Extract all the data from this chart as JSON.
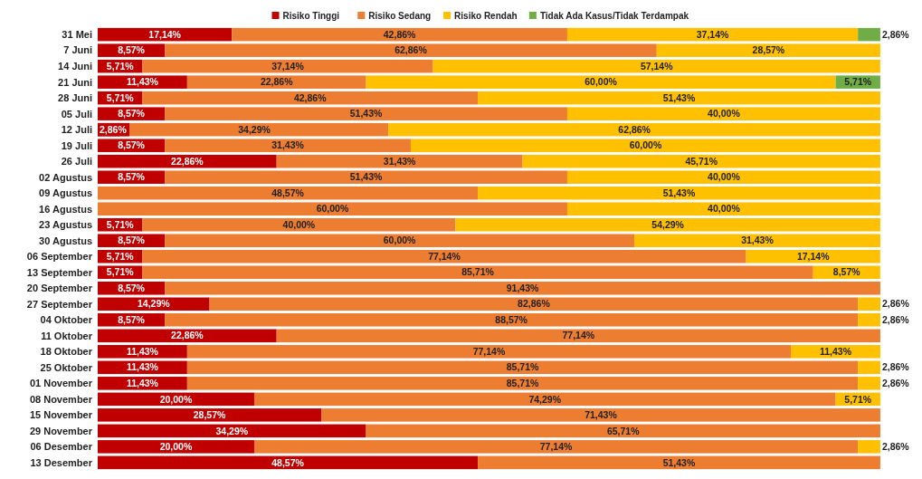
{
  "chart_data": {
    "type": "bar",
    "orientation": "horizontal",
    "stacked": true,
    "legend": "top",
    "categories": [
      "31 Mei",
      "7 Juni",
      "14 Juni",
      "21 Juni",
      "28 Juni",
      "05 Juli",
      "12 Juli",
      "19 Juli",
      "26 Juli",
      "02 Agustus",
      "09 Agustus",
      "16 Agustus",
      "23 Agustus",
      "30 Agustus",
      "06 September",
      "13 September",
      "20 September",
      "27 September",
      "04 Oktober",
      "11 Oktober",
      "18 Oktober",
      "25 Oktober",
      "01 November",
      "08 November",
      "15 November",
      "29 November",
      "06 Desember",
      "13 Desember"
    ],
    "series": [
      {
        "name": "Risiko Tinggi",
        "color": "#c00000",
        "values": [
          17.14,
          8.57,
          5.71,
          11.43,
          5.71,
          8.57,
          2.86,
          8.57,
          22.86,
          8.57,
          0,
          0,
          5.71,
          8.57,
          5.71,
          5.71,
          8.57,
          14.29,
          8.57,
          22.86,
          11.43,
          11.43,
          11.43,
          20.0,
          28.57,
          34.29,
          20.0,
          48.57
        ],
        "value_labels": [
          "17,14%",
          "8,57%",
          "5,71%",
          "11,43%",
          "5,71%",
          "8,57%",
          "2,86%",
          "8,57%",
          "22,86%",
          "8,57%",
          null,
          null,
          "5,71%",
          "8,57%",
          "5,71%",
          "5,71%",
          "8,57%",
          "14,29%",
          "8,57%",
          "22,86%",
          "11,43%",
          "11,43%",
          "11,43%",
          "20,00%",
          "28,57%",
          "34,29%",
          "20,00%",
          "48,57%"
        ]
      },
      {
        "name": "Risiko Sedang",
        "color": "#ed7d31",
        "values": [
          42.86,
          62.86,
          37.14,
          22.86,
          42.86,
          51.43,
          34.29,
          31.43,
          31.43,
          51.43,
          48.57,
          60.0,
          40.0,
          60.0,
          77.14,
          85.71,
          91.43,
          82.86,
          88.57,
          77.14,
          77.14,
          85.71,
          85.71,
          74.29,
          71.43,
          65.71,
          77.14,
          51.43
        ],
        "value_labels": [
          "42,86%",
          "62,86%",
          "37,14%",
          "22,86%",
          "42,86%",
          "51,43%",
          "34,29%",
          "31,43%",
          "31,43%",
          "51,43%",
          "48,57%",
          "60,00%",
          "40,00%",
          "60,00%",
          "77,14%",
          "85,71%",
          "91,43%",
          "82,86%",
          "88,57%",
          "77,14%",
          "77,14%",
          "85,71%",
          "85,71%",
          "74,29%",
          "71,43%",
          "65,71%",
          "77,14%",
          "51,43%"
        ]
      },
      {
        "name": "Risiko Rendah",
        "color": "#ffc000",
        "values": [
          37.14,
          28.57,
          57.14,
          60.0,
          51.43,
          40.0,
          62.86,
          60.0,
          45.71,
          40.0,
          51.43,
          40.0,
          54.29,
          31.43,
          17.14,
          8.57,
          0,
          2.86,
          2.86,
          0,
          11.43,
          2.86,
          2.86,
          5.71,
          0,
          0,
          2.86,
          0
        ],
        "value_labels": [
          "37,14%",
          "28,57%",
          "57,14%",
          "60,00%",
          "51,43%",
          "40,00%",
          "62,86%",
          "60,00%",
          "45,71%",
          "40,00%",
          "51,43%",
          "40,00%",
          "54,29%",
          "31,43%",
          "17,14%",
          "8,57%",
          null,
          "2,86%",
          "2,86%",
          null,
          "11,43%",
          "2,86%",
          "2,86%",
          "5,71%",
          null,
          null,
          "2,86%",
          null
        ]
      },
      {
        "name": "Tidak Ada Kasus/Tidak Terdampak",
        "color": "#70ad47",
        "values": [
          2.86,
          0,
          0,
          5.71,
          0,
          0,
          0,
          0,
          0,
          0,
          0,
          0,
          0,
          0,
          0,
          0,
          0,
          0,
          0,
          0,
          0,
          0,
          0,
          0,
          0,
          0,
          0,
          0
        ],
        "value_labels": [
          "2,86%",
          null,
          null,
          "5,71%",
          null,
          null,
          null,
          null,
          null,
          null,
          null,
          null,
          null,
          null,
          null,
          null,
          null,
          null,
          null,
          null,
          null,
          null,
          null,
          null,
          null,
          null,
          null,
          null
        ]
      }
    ]
  }
}
